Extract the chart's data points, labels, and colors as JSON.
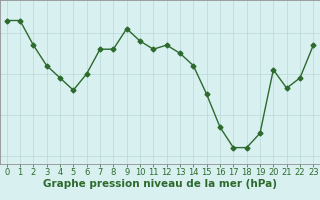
{
  "x": [
    0,
    1,
    2,
    3,
    4,
    5,
    6,
    7,
    8,
    9,
    10,
    11,
    12,
    13,
    14,
    15,
    16,
    17,
    18,
    19,
    20,
    21,
    22,
    23
  ],
  "y": [
    1016.3,
    1016.3,
    1015.7,
    1015.2,
    1014.9,
    1014.6,
    1015.0,
    1015.6,
    1015.6,
    1016.1,
    1015.8,
    1015.6,
    1015.7,
    1015.5,
    1015.2,
    1014.5,
    1013.7,
    1013.2,
    1013.2,
    1013.55,
    1015.1,
    1014.65,
    1014.9,
    1015.7
  ],
  "line_color": "#2d6a2d",
  "marker": "D",
  "marker_size": 2.5,
  "line_width": 1.0,
  "bg_color": "#d8f0f0",
  "grid_color": "#b8d8d8",
  "xlabel": "Graphe pression niveau de la mer (hPa)",
  "xlabel_fontsize": 7.5,
  "xlabel_color": "#2d6a2d",
  "tick_color": "#2d6a2d",
  "tick_fontsize": 6.0,
  "ylim": [
    1012.8,
    1016.8
  ],
  "yticks": [
    1013,
    1014,
    1015,
    1016
  ],
  "xlim": [
    -0.5,
    23.5
  ],
  "xticks": [
    0,
    1,
    2,
    3,
    4,
    5,
    6,
    7,
    8,
    9,
    10,
    11,
    12,
    13,
    14,
    15,
    16,
    17,
    18,
    19,
    20,
    21,
    22,
    23
  ]
}
